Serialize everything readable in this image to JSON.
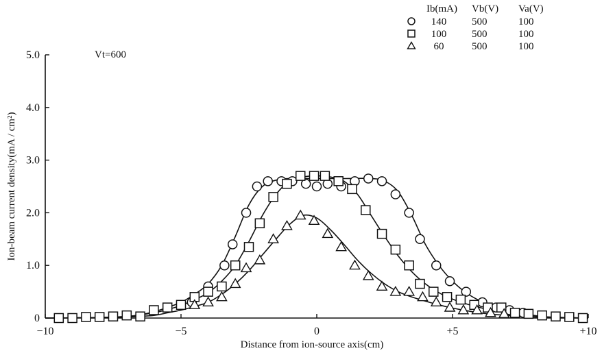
{
  "chart_data": {
    "type": "scatter",
    "title": "",
    "xlabel": "Distance from ion-source axis(cm)",
    "ylabel": "Ion-beam current density(mA / cm²)",
    "annotation": "Vt=600",
    "xlim": [
      -10,
      10
    ],
    "ylim": [
      0,
      5
    ],
    "x_ticks": [
      {
        "value": -10,
        "label": "−10"
      },
      {
        "value": -5,
        "label": "−5"
      },
      {
        "value": 0,
        "label": "0"
      },
      {
        "value": 5,
        "label": "+5"
      },
      {
        "value": 10,
        "label": "+10"
      }
    ],
    "y_ticks": [
      {
        "value": 0,
        "label": "0"
      },
      {
        "value": 1,
        "label": "1.0"
      },
      {
        "value": 2,
        "label": "2.0"
      },
      {
        "value": 3,
        "label": "3.0"
      },
      {
        "value": 4,
        "label": "4.0"
      },
      {
        "value": 5,
        "label": "5.0"
      }
    ],
    "legend": {
      "placement": "top-right",
      "headers": [
        "Ib(mA)",
        "Vb(V)",
        "Va(V)"
      ]
    },
    "series": [
      {
        "marker": "circle",
        "Ib": "140",
        "Vb": "500",
        "Va": "100",
        "points": [
          [
            -4.6,
            0.3
          ],
          [
            -4.0,
            0.6
          ],
          [
            -3.4,
            1.0
          ],
          [
            -3.1,
            1.4
          ],
          [
            -2.6,
            2.0
          ],
          [
            -2.2,
            2.5
          ],
          [
            -1.8,
            2.6
          ],
          [
            -1.3,
            2.6
          ],
          [
            -0.9,
            2.6
          ],
          [
            -0.4,
            2.55
          ],
          [
            0.0,
            2.5
          ],
          [
            0.4,
            2.55
          ],
          [
            0.9,
            2.5
          ],
          [
            1.4,
            2.6
          ],
          [
            1.9,
            2.65
          ],
          [
            2.4,
            2.6
          ],
          [
            2.9,
            2.35
          ],
          [
            3.4,
            2.0
          ],
          [
            3.8,
            1.5
          ],
          [
            4.4,
            1.0
          ],
          [
            4.9,
            0.7
          ],
          [
            5.5,
            0.5
          ],
          [
            6.1,
            0.3
          ],
          [
            6.6,
            0.2
          ],
          [
            7.1,
            0.15
          ],
          [
            7.6,
            0.1
          ]
        ],
        "curve": [
          [
            -10,
            0.0
          ],
          [
            -8,
            0.01
          ],
          [
            -7,
            0.03
          ],
          [
            -6.5,
            0.06
          ],
          [
            -6,
            0.12
          ],
          [
            -5.5,
            0.2
          ],
          [
            -5,
            0.3
          ],
          [
            -4.5,
            0.45
          ],
          [
            -4,
            0.65
          ],
          [
            -3.5,
            1.0
          ],
          [
            -3,
            1.55
          ],
          [
            -2.5,
            2.15
          ],
          [
            -2,
            2.5
          ],
          [
            -1.5,
            2.62
          ],
          [
            -1,
            2.65
          ],
          [
            0,
            2.65
          ],
          [
            1,
            2.65
          ],
          [
            2,
            2.65
          ],
          [
            2.5,
            2.6
          ],
          [
            3,
            2.4
          ],
          [
            3.5,
            1.95
          ],
          [
            4,
            1.4
          ],
          [
            4.5,
            1.0
          ],
          [
            5,
            0.7
          ],
          [
            5.5,
            0.48
          ],
          [
            6,
            0.33
          ],
          [
            6.5,
            0.22
          ],
          [
            7,
            0.14
          ],
          [
            7.5,
            0.09
          ],
          [
            8,
            0.05
          ],
          [
            8.5,
            0.02
          ],
          [
            9,
            0.01
          ],
          [
            10,
            0.0
          ]
        ]
      },
      {
        "marker": "square",
        "Ib": "100",
        "Vb": "500",
        "Va": "100",
        "points": [
          [
            -9.5,
            0.0
          ],
          [
            -9.0,
            0.0
          ],
          [
            -8.5,
            0.02
          ],
          [
            -8.0,
            0.02
          ],
          [
            -7.5,
            0.03
          ],
          [
            -7.0,
            0.05
          ],
          [
            -6.5,
            0.03
          ],
          [
            -6.0,
            0.15
          ],
          [
            -5.5,
            0.2
          ],
          [
            -5.0,
            0.25
          ],
          [
            -4.5,
            0.4
          ],
          [
            -4.0,
            0.5
          ],
          [
            -3.5,
            0.6
          ],
          [
            -3.0,
            1.0
          ],
          [
            -2.5,
            1.35
          ],
          [
            -2.1,
            1.8
          ],
          [
            -1.6,
            2.3
          ],
          [
            -1.1,
            2.55
          ],
          [
            -0.6,
            2.7
          ],
          [
            -0.1,
            2.7
          ],
          [
            0.3,
            2.7
          ],
          [
            0.8,
            2.6
          ],
          [
            1.3,
            2.45
          ],
          [
            1.8,
            2.05
          ],
          [
            2.4,
            1.6
          ],
          [
            2.9,
            1.3
          ],
          [
            3.4,
            1.0
          ],
          [
            3.8,
            0.65
          ],
          [
            4.3,
            0.5
          ],
          [
            4.8,
            0.4
          ],
          [
            5.3,
            0.35
          ],
          [
            5.8,
            0.25
          ],
          [
            6.3,
            0.2
          ],
          [
            6.8,
            0.2
          ],
          [
            7.3,
            0.1
          ],
          [
            7.8,
            0.08
          ],
          [
            8.3,
            0.05
          ],
          [
            8.8,
            0.03
          ],
          [
            9.3,
            0.02
          ],
          [
            9.8,
            0.0
          ]
        ],
        "curve": [
          [
            -10,
            0.0
          ],
          [
            -8,
            0.01
          ],
          [
            -7,
            0.03
          ],
          [
            -6.5,
            0.06
          ],
          [
            -6,
            0.1
          ],
          [
            -5.5,
            0.16
          ],
          [
            -5,
            0.24
          ],
          [
            -4.5,
            0.35
          ],
          [
            -4,
            0.48
          ],
          [
            -3.5,
            0.7
          ],
          [
            -3,
            1.0
          ],
          [
            -2.5,
            1.45
          ],
          [
            -2,
            1.95
          ],
          [
            -1.5,
            2.35
          ],
          [
            -1,
            2.6
          ],
          [
            -0.5,
            2.68
          ],
          [
            0,
            2.7
          ],
          [
            0.5,
            2.68
          ],
          [
            1,
            2.6
          ],
          [
            1.5,
            2.35
          ],
          [
            2,
            1.95
          ],
          [
            2.5,
            1.55
          ],
          [
            3,
            1.18
          ],
          [
            3.5,
            0.88
          ],
          [
            4,
            0.65
          ],
          [
            4.5,
            0.48
          ],
          [
            5,
            0.36
          ],
          [
            5.5,
            0.27
          ],
          [
            6,
            0.2
          ],
          [
            6.5,
            0.14
          ],
          [
            7,
            0.1
          ],
          [
            7.5,
            0.07
          ],
          [
            8,
            0.04
          ],
          [
            9,
            0.01
          ],
          [
            10,
            0.0
          ]
        ]
      },
      {
        "marker": "triangle",
        "Ib": "60",
        "Vb": "500",
        "Va": "100",
        "points": [
          [
            -4.5,
            0.25
          ],
          [
            -4.0,
            0.3
          ],
          [
            -3.5,
            0.4
          ],
          [
            -3.0,
            0.65
          ],
          [
            -2.6,
            0.95
          ],
          [
            -2.1,
            1.1
          ],
          [
            -1.6,
            1.5
          ],
          [
            -1.1,
            1.75
          ],
          [
            -0.6,
            1.95
          ],
          [
            -0.1,
            1.85
          ],
          [
            0.4,
            1.6
          ],
          [
            0.9,
            1.35
          ],
          [
            1.4,
            1.0
          ],
          [
            1.9,
            0.8
          ],
          [
            2.4,
            0.6
          ],
          [
            2.9,
            0.5
          ],
          [
            3.4,
            0.5
          ],
          [
            3.9,
            0.4
          ],
          [
            4.4,
            0.3
          ],
          [
            4.9,
            0.2
          ],
          [
            5.4,
            0.15
          ],
          [
            5.9,
            0.15
          ],
          [
            6.4,
            0.1
          ],
          [
            6.9,
            0.08
          ]
        ],
        "curve": [
          [
            -10,
            0.0
          ],
          [
            -8,
            0.01
          ],
          [
            -7,
            0.02
          ],
          [
            -6,
            0.05
          ],
          [
            -5.5,
            0.1
          ],
          [
            -5,
            0.15
          ],
          [
            -4.5,
            0.22
          ],
          [
            -4,
            0.3
          ],
          [
            -3.5,
            0.45
          ],
          [
            -3,
            0.65
          ],
          [
            -2.5,
            0.9
          ],
          [
            -2,
            1.2
          ],
          [
            -1.5,
            1.5
          ],
          [
            -1,
            1.78
          ],
          [
            -0.5,
            1.95
          ],
          [
            0,
            1.9
          ],
          [
            0.5,
            1.68
          ],
          [
            1,
            1.4
          ],
          [
            1.5,
            1.1
          ],
          [
            2,
            0.85
          ],
          [
            2.5,
            0.65
          ],
          [
            3,
            0.5
          ],
          [
            3.5,
            0.4
          ],
          [
            4,
            0.32
          ],
          [
            4.5,
            0.25
          ],
          [
            5,
            0.19
          ],
          [
            5.5,
            0.14
          ],
          [
            6,
            0.1
          ],
          [
            6.5,
            0.07
          ],
          [
            7,
            0.05
          ],
          [
            8,
            0.02
          ],
          [
            9,
            0.01
          ],
          [
            10,
            0.0
          ]
        ]
      }
    ]
  }
}
